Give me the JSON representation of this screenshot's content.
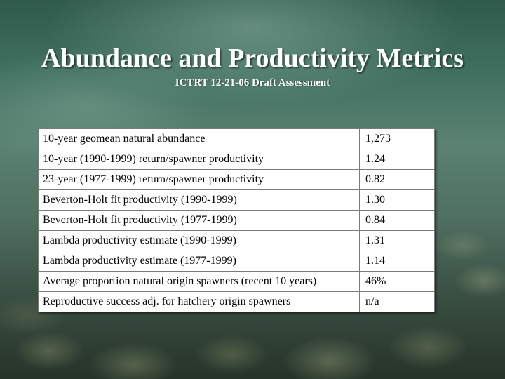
{
  "slide": {
    "title": "Abundance and Productivity Metrics",
    "subtitle": "ICTRT 12-21-06 Draft Assessment"
  },
  "table": {
    "rows": [
      {
        "metric": "10-year geomean natural abundance",
        "value": "1,273"
      },
      {
        "metric": "10-year (1990-1999) return/spawner productivity",
        "value": "1.24"
      },
      {
        "metric": "23-year (1977-1999) return/spawner productivity",
        "value": "0.82"
      },
      {
        "metric": "Beverton-Holt fit productivity (1990-1999)",
        "value": "1.30"
      },
      {
        "metric": "Beverton-Holt fit productivity (1977-1999)",
        "value": "0.84"
      },
      {
        "metric": "Lambda productivity estimate (1990-1999)",
        "value": "1.31"
      },
      {
        "metric": "Lambda productivity estimate (1977-1999)",
        "value": "1.14"
      },
      {
        "metric": "Average proportion natural origin spawners (recent 10 years)",
        "value": "46%"
      },
      {
        "metric": "Reproductive success adj. for hatchery origin spawners",
        "value": "n/a"
      }
    ]
  }
}
